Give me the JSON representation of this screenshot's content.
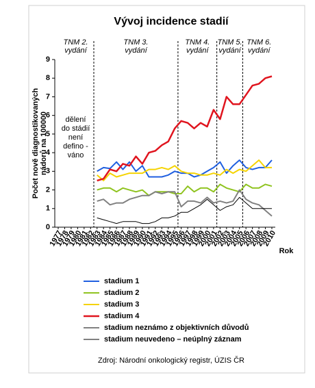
{
  "chart_data": {
    "type": "line",
    "title": "Vývoj incidence stadií",
    "y_label": [
      "Počet nově diagnostikovaných",
      "nádorů na 100000"
    ],
    "x_label": "Rok",
    "categories": [
      "1977",
      "1978",
      "1979",
      "1980",
      "1981",
      "1982",
      "1983",
      "1984",
      "1985",
      "1986",
      "1987",
      "1988",
      "1989",
      "1990",
      "1991",
      "1992",
      "1993",
      "1994",
      "1995",
      "1996",
      "1997",
      "1998",
      "1999",
      "2000",
      "2001",
      "2002",
      "2003",
      "2004",
      "2005",
      "2006",
      "2007",
      "2008",
      "2009",
      "2010"
    ],
    "ylim": [
      0,
      9
    ],
    "yticks": [
      0,
      1,
      2,
      3,
      4,
      5,
      6,
      7,
      8,
      9
    ],
    "series": [
      {
        "name": "stadium 1",
        "color": "#1f5fe0",
        "width": 2,
        "values": [
          null,
          null,
          null,
          null,
          null,
          null,
          3.0,
          3.2,
          3.15,
          3.5,
          3.1,
          3.5,
          3.0,
          3.3,
          2.7,
          2.7,
          2.7,
          2.8,
          3.0,
          2.9,
          2.9,
          2.7,
          2.8,
          3.0,
          3.2,
          3.5,
          2.9,
          3.3,
          3.6,
          3.2,
          3.1,
          3.2,
          3.2,
          3.6
        ]
      },
      {
        "name": "stadium 2",
        "color": "#8fc31f",
        "width": 2,
        "values": [
          null,
          null,
          null,
          null,
          null,
          null,
          2.0,
          2.1,
          2.1,
          1.9,
          2.1,
          2.0,
          1.9,
          2.0,
          1.7,
          1.9,
          1.9,
          1.9,
          1.8,
          1.8,
          2.2,
          1.9,
          2.1,
          2.1,
          1.9,
          2.3,
          2.1,
          2.0,
          1.9,
          2.3,
          2.1,
          2.1,
          2.3,
          2.2
        ]
      },
      {
        "name": "stadium 3",
        "color": "#f5d300",
        "width": 2,
        "values": [
          null,
          null,
          null,
          null,
          null,
          null,
          2.8,
          2.5,
          2.9,
          2.7,
          2.8,
          2.9,
          2.9,
          2.9,
          3.1,
          3.1,
          3.2,
          3.1,
          3.3,
          3.0,
          2.9,
          2.9,
          2.8,
          2.8,
          2.9,
          2.8,
          3.1,
          2.9,
          3.1,
          3.0,
          3.3,
          3.6,
          3.2,
          3.2
        ]
      },
      {
        "name": "stadium 4",
        "color": "#e0141e",
        "width": 2.5,
        "values": [
          null,
          null,
          null,
          null,
          null,
          null,
          2.5,
          2.6,
          3.1,
          3.0,
          3.4,
          3.3,
          3.8,
          3.4,
          4.0,
          4.1,
          4.4,
          4.6,
          5.3,
          5.7,
          5.6,
          5.3,
          5.6,
          5.4,
          6.3,
          5.8,
          7.0,
          6.6,
          6.6,
          7.1,
          7.6,
          7.7,
          8.0,
          8.1
        ]
      },
      {
        "name": "stadium neznámo z objektivních důvodů",
        "color": "#808080",
        "width": 2,
        "values": [
          null,
          null,
          null,
          null,
          null,
          null,
          1.4,
          1.5,
          1.2,
          1.3,
          1.3,
          1.5,
          1.6,
          1.7,
          1.7,
          1.9,
          1.8,
          1.9,
          1.9,
          1.1,
          1.4,
          1.4,
          1.3,
          1.6,
          1.3,
          1.4,
          1.3,
          1.4,
          2.0,
          1.5,
          1.3,
          1.2,
          0.9,
          0.6
        ]
      },
      {
        "name": "stadium neuvedeno – neúplný záznam",
        "color": "#000000",
        "width": 1,
        "values": [
          null,
          null,
          null,
          null,
          null,
          null,
          0.5,
          0.4,
          0.3,
          0.2,
          0.3,
          0.3,
          0.3,
          0.2,
          0.2,
          0.3,
          0.5,
          0.5,
          0.6,
          0.8,
          0.8,
          1.0,
          1.2,
          1.5,
          1.2,
          0.9,
          1.1,
          1.2,
          1.6,
          1.3,
          1.0,
          1.0,
          1.0,
          1.0
        ]
      }
    ],
    "annotations": [
      {
        "text": [
          "TNM 2.",
          "vydání"
        ],
        "x": 1982.5
      },
      {
        "text": [
          "TNM 3.",
          "vydání"
        ],
        "x": 1995.5
      },
      {
        "text": [
          "TNM 4.",
          "vydání"
        ],
        "x": 2001.5
      },
      {
        "text": [
          "TNM 5.",
          "vydání"
        ],
        "x": 2005.5
      },
      {
        "text": [
          "TNM 6.",
          "vydání"
        ]
      }
    ],
    "note": [
      "dělení",
      "do stádií",
      "není",
      "defino -",
      "váno"
    ],
    "source": "Zdroj: Národní onkologický registr, ÚZIS ČR"
  }
}
